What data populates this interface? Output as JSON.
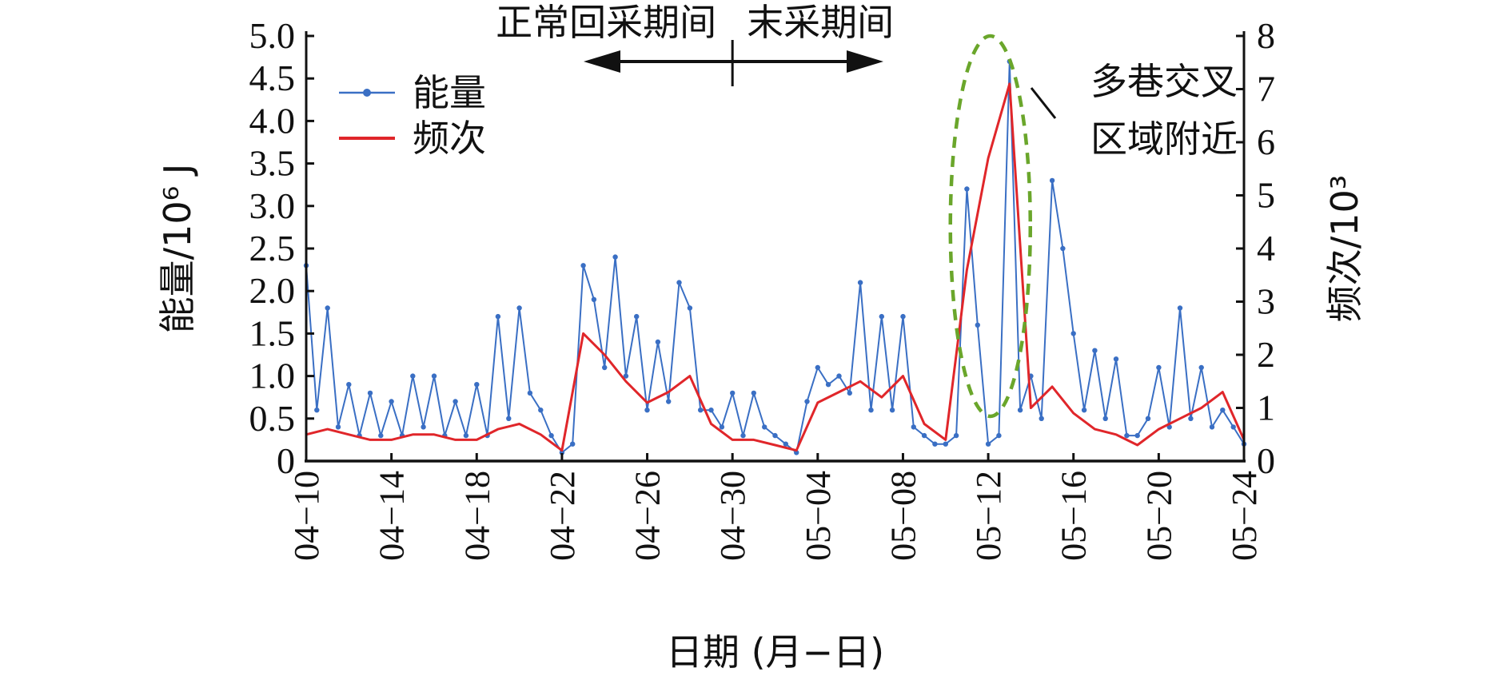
{
  "chart_data": {
    "type": "line",
    "xlabel": "日期 (月−日)",
    "y1label": "能量/10⁶ J",
    "y2label": "频次/10³",
    "y1lim": [
      0,
      5.0
    ],
    "y2lim": [
      0,
      8
    ],
    "y1ticks": [
      "0",
      "0.5",
      "1.0",
      "1.5",
      "2.0",
      "2.5",
      "3.0",
      "3.5",
      "4.0",
      "4.5",
      "5.0"
    ],
    "y2ticks": [
      "0",
      "1",
      "2",
      "3",
      "4",
      "5",
      "6",
      "7",
      "8"
    ],
    "x_start": "04-10",
    "x_end": "05-24",
    "xticks": [
      "04-10",
      "04-14",
      "04-18",
      "04-22",
      "04-26",
      "04-30",
      "05-04",
      "05-08",
      "05-12",
      "05-16",
      "05-20",
      "05-24"
    ],
    "legend_position": "top-left",
    "grid": false,
    "series": [
      {
        "name": "能量",
        "axis": "left",
        "color": "#3a6fc4",
        "marker": "circle",
        "points": [
          [
            "04-10",
            2.3
          ],
          [
            "04-10",
            0.6
          ],
          [
            "04-11",
            1.8
          ],
          [
            "04-11",
            0.4
          ],
          [
            "04-12",
            0.9
          ],
          [
            "04-12",
            0.3
          ],
          [
            "04-13",
            0.8
          ],
          [
            "04-13",
            0.3
          ],
          [
            "04-14",
            0.7
          ],
          [
            "04-14",
            0.3
          ],
          [
            "04-15",
            1.0
          ],
          [
            "04-15",
            0.4
          ],
          [
            "04-16",
            1.0
          ],
          [
            "04-16",
            0.3
          ],
          [
            "04-17",
            0.7
          ],
          [
            "04-17",
            0.3
          ],
          [
            "04-18",
            0.9
          ],
          [
            "04-18",
            0.3
          ],
          [
            "04-19",
            1.7
          ],
          [
            "04-19",
            0.5
          ],
          [
            "04-20",
            1.8
          ],
          [
            "04-20",
            0.8
          ],
          [
            "04-21",
            0.6
          ],
          [
            "04-21",
            0.3
          ],
          [
            "04-22",
            0.1
          ],
          [
            "04-22",
            0.2
          ],
          [
            "04-23",
            2.3
          ],
          [
            "04-23",
            1.9
          ],
          [
            "04-24",
            1.1
          ],
          [
            "04-24",
            2.4
          ],
          [
            "04-25",
            1.0
          ],
          [
            "04-25",
            1.7
          ],
          [
            "04-26",
            0.6
          ],
          [
            "04-26",
            1.4
          ],
          [
            "04-27",
            0.7
          ],
          [
            "04-27",
            2.1
          ],
          [
            "04-28",
            1.8
          ],
          [
            "04-28",
            0.6
          ],
          [
            "04-29",
            0.6
          ],
          [
            "04-29",
            0.4
          ],
          [
            "04-30",
            0.8
          ],
          [
            "04-30",
            0.3
          ],
          [
            "05-01",
            0.8
          ],
          [
            "05-01",
            0.4
          ],
          [
            "05-02",
            0.3
          ],
          [
            "05-02",
            0.2
          ],
          [
            "05-03",
            0.1
          ],
          [
            "05-03",
            0.7
          ],
          [
            "05-04",
            1.1
          ],
          [
            "05-04",
            0.9
          ],
          [
            "05-05",
            1.0
          ],
          [
            "05-05",
            0.8
          ],
          [
            "05-06",
            2.1
          ],
          [
            "05-06",
            0.6
          ],
          [
            "05-07",
            1.7
          ],
          [
            "05-07",
            0.6
          ],
          [
            "05-08",
            1.7
          ],
          [
            "05-08",
            0.4
          ],
          [
            "05-09",
            0.3
          ],
          [
            "05-09",
            0.2
          ],
          [
            "05-10",
            0.2
          ],
          [
            "05-10",
            0.3
          ],
          [
            "05-11",
            3.2
          ],
          [
            "05-11",
            1.6
          ],
          [
            "05-12",
            0.2
          ],
          [
            "05-12",
            0.3
          ],
          [
            "05-13",
            4.7
          ],
          [
            "05-13",
            0.6
          ],
          [
            "05-14",
            1.0
          ],
          [
            "05-14",
            0.5
          ],
          [
            "05-15",
            3.3
          ],
          [
            "05-15",
            2.5
          ],
          [
            "05-16",
            1.5
          ],
          [
            "05-16",
            0.6
          ],
          [
            "05-17",
            1.3
          ],
          [
            "05-17",
            0.5
          ],
          [
            "05-18",
            1.2
          ],
          [
            "05-18",
            0.3
          ],
          [
            "05-19",
            0.3
          ],
          [
            "05-19",
            0.5
          ],
          [
            "05-20",
            1.1
          ],
          [
            "05-20",
            0.4
          ],
          [
            "05-21",
            1.8
          ],
          [
            "05-21",
            0.5
          ],
          [
            "05-22",
            1.1
          ],
          [
            "05-22",
            0.4
          ],
          [
            "05-23",
            0.6
          ],
          [
            "05-23",
            0.4
          ],
          [
            "05-24",
            0.2
          ]
        ]
      },
      {
        "name": "频次",
        "axis": "right",
        "color": "#e0262a",
        "points": [
          [
            "04-10",
            0.5
          ],
          [
            "04-11",
            0.6
          ],
          [
            "04-12",
            0.5
          ],
          [
            "04-13",
            0.4
          ],
          [
            "04-14",
            0.4
          ],
          [
            "04-15",
            0.5
          ],
          [
            "04-16",
            0.5
          ],
          [
            "04-17",
            0.4
          ],
          [
            "04-18",
            0.4
          ],
          [
            "04-19",
            0.6
          ],
          [
            "04-20",
            0.7
          ],
          [
            "04-21",
            0.5
          ],
          [
            "04-22",
            0.2
          ],
          [
            "04-23",
            2.4
          ],
          [
            "04-24",
            2.0
          ],
          [
            "04-25",
            1.5
          ],
          [
            "04-26",
            1.1
          ],
          [
            "04-27",
            1.3
          ],
          [
            "04-28",
            1.6
          ],
          [
            "04-29",
            0.7
          ],
          [
            "04-30",
            0.4
          ],
          [
            "05-01",
            0.4
          ],
          [
            "05-02",
            0.3
          ],
          [
            "05-03",
            0.2
          ],
          [
            "05-04",
            1.1
          ],
          [
            "05-05",
            1.3
          ],
          [
            "05-06",
            1.5
          ],
          [
            "05-07",
            1.2
          ],
          [
            "05-08",
            1.6
          ],
          [
            "05-09",
            0.7
          ],
          [
            "05-10",
            0.4
          ],
          [
            "05-11",
            3.6
          ],
          [
            "05-12",
            5.7
          ],
          [
            "05-13",
            7.1
          ],
          [
            "05-14",
            1.0
          ],
          [
            "05-15",
            1.4
          ],
          [
            "05-16",
            0.9
          ],
          [
            "05-17",
            0.6
          ],
          [
            "05-18",
            0.5
          ],
          [
            "05-19",
            0.3
          ],
          [
            "05-20",
            0.6
          ],
          [
            "05-21",
            0.8
          ],
          [
            "05-22",
            1.0
          ],
          [
            "05-23",
            1.3
          ],
          [
            "05-24",
            0.4
          ]
        ]
      }
    ],
    "annotations": {
      "period_left": "正常回采期间",
      "period_right": "末采期间",
      "highlight_line1": "多巷交叉",
      "highlight_line2": "区域附近"
    }
  }
}
